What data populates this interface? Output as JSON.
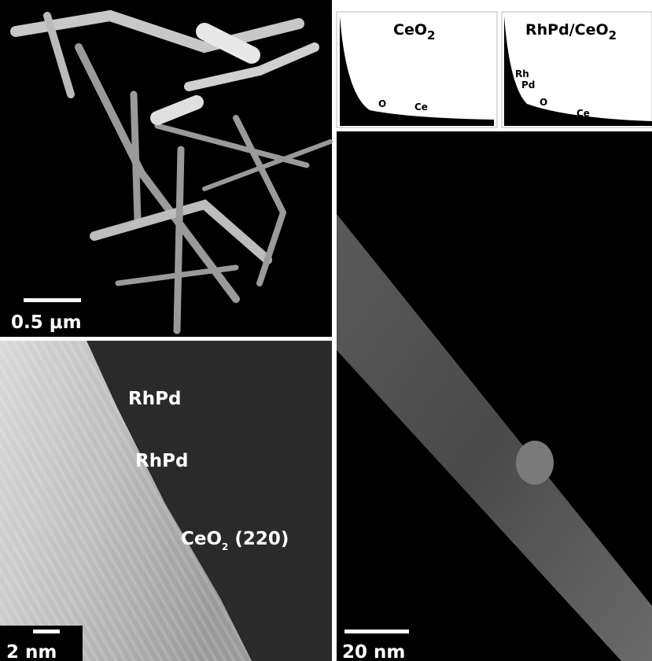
{
  "panels": {
    "overview": {
      "scale_bar": "0.5 μm"
    },
    "spectra": [
      {
        "title": {
          "text": "CeO",
          "sub": "2"
        },
        "peaks": [
          "O",
          "Ce"
        ]
      },
      {
        "title": {
          "text": "RhPd/CeO",
          "sub": "2"
        },
        "peaks": [
          "Rh",
          "Pd",
          "O",
          "Ce"
        ]
      }
    ],
    "lattice": {
      "labels": [
        {
          "text": "RhPd"
        },
        {
          "text": "RhPd"
        },
        {
          "text": "CeO",
          "sub": "2",
          "rest": " (220)"
        }
      ],
      "scale_bar": "2 nm"
    },
    "nanorod": {
      "scale_bar": "20 nm"
    }
  }
}
